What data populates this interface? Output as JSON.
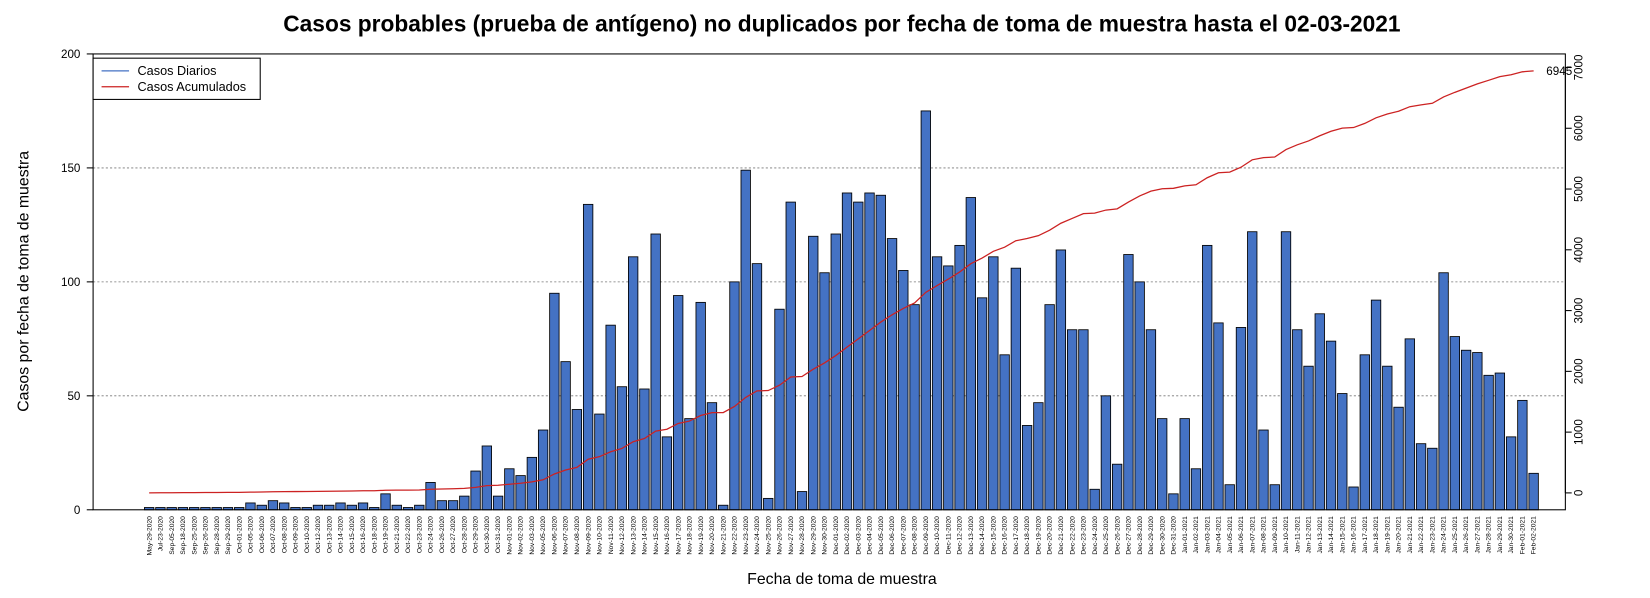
{
  "chart_data": {
    "type": "bar",
    "title": "Casos probables (prueba de antígeno) no duplicados por fecha de toma de muestra hasta el 02-03-2021",
    "x_label": "Fecha de toma de muestra",
    "y_label": "Casos por fecha de toma de muestra",
    "categories": [
      "May-29-2020",
      "Jul-23-2020",
      "Sep-05-2020",
      "Sep-18-2020",
      "Sep-25-2020",
      "Sep-26-2020",
      "Sep-28-2020",
      "Sep-29-2020",
      "Oct-01-2020",
      "Oct-05-2020",
      "Oct-06-2020",
      "Oct-07-2020",
      "Oct-08-2020",
      "Oct-09-2020",
      "Oct-10-2020",
      "Oct-12-2020",
      "Oct-13-2020",
      "Oct-14-2020",
      "Oct-15-2020",
      "Oct-16-2020",
      "Oct-18-2020",
      "Oct-19-2020",
      "Oct-21-2020",
      "Oct-22-2020",
      "Oct-23-2020",
      "Oct-24-2020",
      "Oct-26-2020",
      "Oct-27-2020",
      "Oct-28-2020",
      "Oct-29-2020",
      "Oct-30-2020",
      "Oct-31-2020",
      "Nov-01-2020",
      "Nov-02-2020",
      "Nov-03-2020",
      "Nov-05-2020",
      "Nov-06-2020",
      "Nov-07-2020",
      "Nov-08-2020",
      "Nov-09-2020",
      "Nov-10-2020",
      "Nov-11-2020",
      "Nov-12-2020",
      "Nov-13-2020",
      "Nov-14-2020",
      "Nov-15-2020",
      "Nov-16-2020",
      "Nov-17-2020",
      "Nov-18-2020",
      "Nov-19-2020",
      "Nov-20-2020",
      "Nov-21-2020",
      "Nov-22-2020",
      "Nov-23-2020",
      "Nov-24-2020",
      "Nov-25-2020",
      "Nov-26-2020",
      "Nov-27-2020",
      "Nov-28-2020",
      "Nov-29-2020",
      "Nov-30-2020",
      "Dec-01-2020",
      "Dec-02-2020",
      "Dec-03-2020",
      "Dec-04-2020",
      "Dec-05-2020",
      "Dec-06-2020",
      "Dec-07-2020",
      "Dec-08-2020",
      "Dec-09-2020",
      "Dec-10-2020",
      "Dec-11-2020",
      "Dec-12-2020",
      "Dec-13-2020",
      "Dec-14-2020",
      "Dec-15-2020",
      "Dec-16-2020",
      "Dec-17-2020",
      "Dec-18-2020",
      "Dec-19-2020",
      "Dec-20-2020",
      "Dec-21-2020",
      "Dec-22-2020",
      "Dec-23-2020",
      "Dec-24-2020",
      "Dec-25-2020",
      "Dec-26-2020",
      "Dec-27-2020",
      "Dec-28-2020",
      "Dec-29-2020",
      "Dec-30-2020",
      "Dec-31-2020",
      "Jan-01-2021",
      "Jan-02-2021",
      "Jan-03-2021",
      "Jan-04-2021",
      "Jan-05-2021",
      "Jan-06-2021",
      "Jan-07-2021",
      "Jan-08-2021",
      "Jan-09-2021",
      "Jan-10-2021",
      "Jan-11-2021",
      "Jan-12-2021",
      "Jan-13-2021",
      "Jan-14-2021",
      "Jan-15-2021",
      "Jan-16-2021",
      "Jan-17-2021",
      "Jan-18-2021",
      "Jan-19-2021",
      "Jan-20-2021",
      "Jan-21-2021",
      "Jan-22-2021",
      "Jan-23-2021",
      "Jan-24-2021",
      "Jan-25-2021",
      "Jan-26-2021",
      "Jan-27-2021",
      "Jan-28-2021",
      "Jan-29-2021",
      "Jan-30-2021",
      "Feb-01-2021",
      "Feb-02-2021"
    ],
    "series": [
      {
        "name": "Casos Diarios",
        "color": "#4472c4",
        "values": [
          1,
          1,
          1,
          1,
          1,
          1,
          1,
          1,
          1,
          3,
          2,
          4,
          3,
          1,
          1,
          2,
          2,
          3,
          2,
          3,
          1,
          7,
          2,
          1,
          2,
          12,
          4,
          4,
          6,
          17,
          28,
          6,
          18,
          15,
          23,
          35,
          95,
          65,
          44,
          134,
          42,
          81,
          54,
          111,
          53,
          121,
          32,
          94,
          40,
          91,
          47,
          2,
          100,
          149,
          108,
          5,
          88,
          135,
          8,
          120,
          104,
          121,
          139,
          135,
          139,
          138,
          119,
          105,
          90,
          175,
          111,
          107,
          116,
          137,
          93,
          111,
          68,
          106,
          37,
          47,
          90,
          114,
          79,
          79,
          9,
          50,
          20,
          112,
          100,
          79,
          40,
          7,
          40,
          18,
          116,
          82,
          11,
          80,
          122,
          35,
          11,
          122,
          79,
          63,
          86,
          74,
          51,
          10,
          68,
          92,
          63,
          45,
          75,
          29,
          27,
          104,
          76,
          70,
          69,
          59,
          60,
          32,
          48,
          16
        ]
      },
      {
        "name": "Casos Acumulados",
        "color": "#cc2222",
        "axis": "y2",
        "values": [
          1,
          2,
          3,
          4,
          5,
          6,
          7,
          8,
          9,
          12,
          14,
          18,
          21,
          22,
          23,
          25,
          27,
          30,
          32,
          35,
          36,
          43,
          45,
          46,
          48,
          60,
          64,
          68,
          74,
          91,
          119,
          125,
          143,
          158,
          181,
          216,
          311,
          376,
          420,
          554,
          596,
          677,
          731,
          842,
          895,
          1016,
          1048,
          1142,
          1182,
          1273,
          1320,
          1322,
          1422,
          1571,
          1679,
          1684,
          1772,
          1907,
          1915,
          2035,
          2139,
          2260,
          2399,
          2534,
          2673,
          2811,
          2930,
          3035,
          3125,
          3300,
          3411,
          3518,
          3634,
          3771,
          3864,
          3975,
          4043,
          4149,
          4186,
          4233,
          4323,
          4437,
          4516,
          4595,
          4604,
          4654,
          4674,
          4786,
          4886,
          4965,
          5005,
          5012,
          5052,
          5070,
          5186,
          5268,
          5279,
          5359,
          5481,
          5516,
          5527,
          5649,
          5728,
          5791,
          5877,
          5951,
          6002,
          6012,
          6080,
          6172,
          6235,
          6280,
          6355,
          6384,
          6411,
          6515,
          6591,
          6661,
          6730,
          6789,
          6849,
          6881,
          6929,
          6945
        ]
      }
    ],
    "annotation": "6945",
    "ylim": [
      0,
      200
    ],
    "yticks": [
      0,
      50,
      100,
      150,
      200
    ],
    "y2lim": [
      -278,
      7223
    ],
    "y2ticks": [
      0,
      1000,
      2000,
      3000,
      4000,
      5000,
      6000,
      7000
    ],
    "grid": true,
    "legend": "top-left"
  }
}
